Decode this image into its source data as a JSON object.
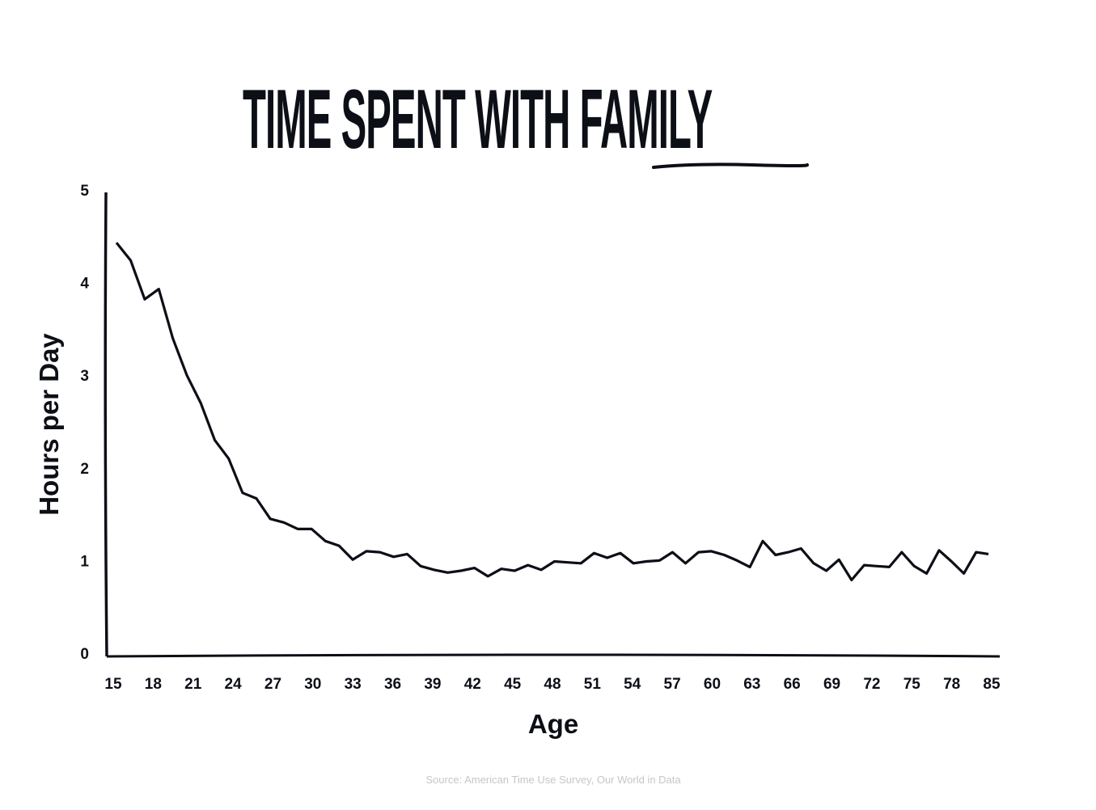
{
  "chart_data": {
    "type": "line",
    "title_main": "TIME SPENT WITH ",
    "title_emphasis": "FAMILY",
    "xlabel": "Age",
    "ylabel": "Hours per Day",
    "ylim": [
      0,
      5
    ],
    "yticks": [
      0,
      1,
      2,
      3,
      4,
      5
    ],
    "xticks": [
      15,
      18,
      21,
      24,
      27,
      30,
      33,
      36,
      39,
      42,
      45,
      48,
      51,
      54,
      57,
      60,
      63,
      66,
      69,
      72,
      75,
      78,
      85
    ],
    "grid": false,
    "color": "#0d0f17",
    "series": [
      {
        "name": "Hours per Day",
        "values": [
          4.43,
          4.24,
          3.82,
          3.93,
          3.4,
          3.0,
          2.7,
          2.3,
          2.1,
          1.73,
          1.67,
          1.45,
          1.41,
          1.34,
          1.34,
          1.21,
          1.16,
          1.01,
          1.1,
          1.09,
          1.04,
          1.07,
          0.94,
          0.9,
          0.87,
          0.89,
          0.92,
          0.83,
          0.91,
          0.89,
          0.95,
          0.9,
          0.99,
          0.98,
          0.97,
          1.08,
          1.03,
          1.08,
          0.97,
          0.99,
          1.0,
          1.09,
          0.97,
          1.09,
          1.1,
          1.06,
          1.0,
          0.93,
          1.21,
          1.06,
          1.09,
          1.13,
          0.97,
          0.89,
          1.01,
          0.79,
          0.95,
          0.94,
          0.93,
          1.09,
          0.94,
          0.86,
          1.11,
          0.99,
          0.86,
          1.09,
          1.07
        ]
      }
    ],
    "source": "Source: American Time Use Survey, Our World in Data"
  }
}
